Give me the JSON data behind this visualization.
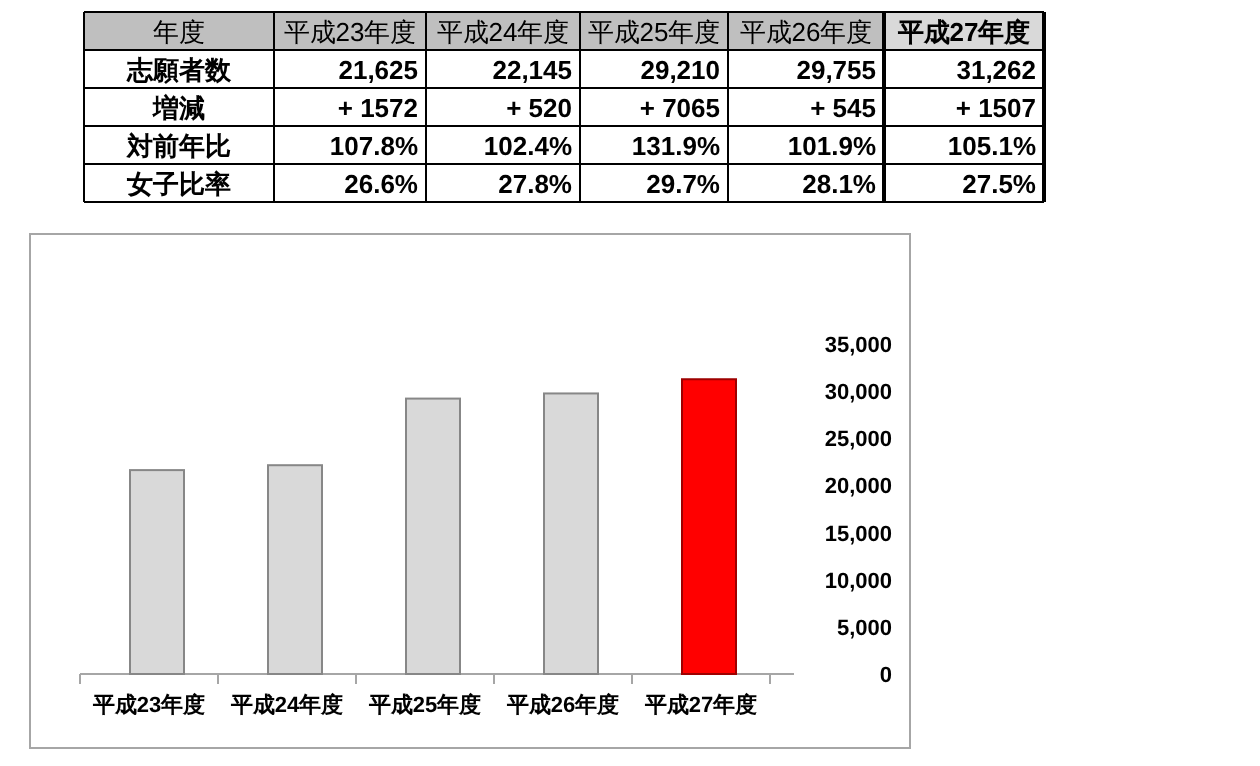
{
  "chart_data": [
    {
      "type": "other",
      "title": "年度",
      "categories": [
        "平成23年度",
        "平成24年度",
        "平成25年度",
        "平成26年度",
        "平成27年度"
      ],
      "y_categories": [
        "志願者数",
        "増減",
        "対前年比",
        "女子比率"
      ],
      "cell_labels": [
        [
          "21,625",
          "22,145",
          "29,210",
          "29,755",
          "31,262"
        ],
        [
          "+ 1572",
          "+ 520",
          "+ 7065",
          "+ 545",
          "+ 1507"
        ],
        [
          "107.8%",
          "102.4%",
          "131.9%",
          "101.9%",
          "105.1%"
        ],
        [
          "26.6%",
          "27.8%",
          "29.7%",
          "28.1%",
          "27.5%"
        ]
      ]
    },
    {
      "type": "bar",
      "categories": [
        "平成23年度",
        "平成24年度",
        "平成25年度",
        "平成26年度",
        "平成27年度"
      ],
      "values": [
        21625,
        22145,
        29210,
        29755,
        31262
      ],
      "colors": [
        "#d9d9d9",
        "#d9d9d9",
        "#d9d9d9",
        "#d9d9d9",
        "#ff0000"
      ],
      "ylim": [
        0,
        35000
      ],
      "yticks": [
        {
          "value": 0,
          "label": "0"
        },
        {
          "value": 5000,
          "label": "5,000"
        },
        {
          "value": 10000,
          "label": "10,000"
        },
        {
          "value": 15000,
          "label": "15,000"
        },
        {
          "value": 20000,
          "label": "20,000"
        },
        {
          "value": 25000,
          "label": "25,000"
        },
        {
          "value": 30000,
          "label": "30,000"
        },
        {
          "value": 35000,
          "label": "35,000"
        }
      ]
    }
  ]
}
